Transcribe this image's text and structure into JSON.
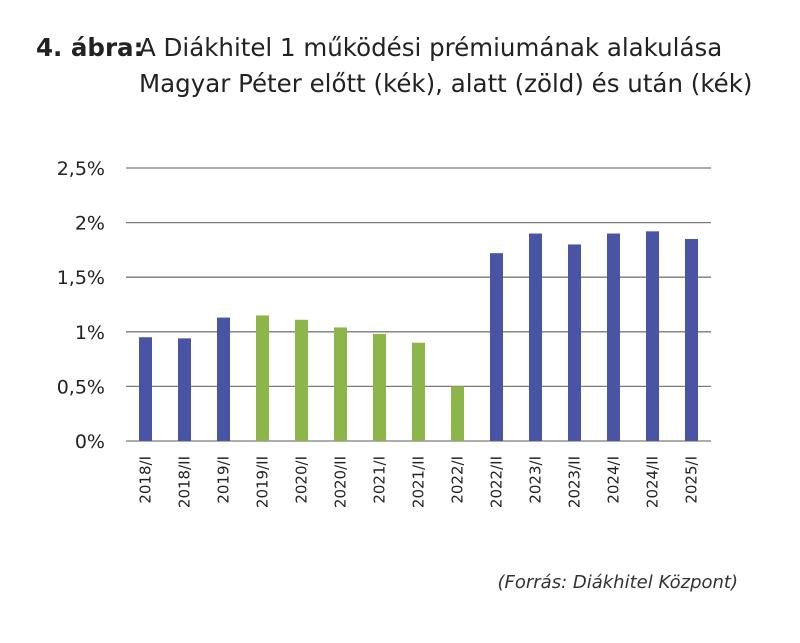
{
  "title": {
    "prefix": "4. ábra:",
    "line1": "A Diákhitel 1 működési prémiumának alakulása",
    "line2": "Magyar Péter előtt (kék), alatt (zöld) és után (kék)"
  },
  "source": "(Forrás: Diákhitel Központ)",
  "colors": {
    "blue": "#4a54a4",
    "green": "#8db64a",
    "grid": "#7a7a7a"
  },
  "chart_data": {
    "type": "bar",
    "categories": [
      "2018/I",
      "2018/II",
      "2019/I",
      "2019/II",
      "2020/I",
      "2020/II",
      "2021/I",
      "2021/II",
      "2022/I",
      "2022/II",
      "2023/I",
      "2023/II",
      "2024/I",
      "2024/II",
      "2025/I"
    ],
    "values": [
      0.95,
      0.94,
      1.13,
      1.15,
      1.11,
      1.04,
      0.98,
      0.9,
      0.5,
      1.72,
      1.9,
      1.8,
      1.9,
      1.92,
      1.85
    ],
    "bar_colors": [
      "blue",
      "blue",
      "blue",
      "green",
      "green",
      "green",
      "green",
      "green",
      "green",
      "blue",
      "blue",
      "blue",
      "blue",
      "blue",
      "blue"
    ],
    "yticks": [
      0,
      0.5,
      1,
      1.5,
      2,
      2.5
    ],
    "ytick_labels": [
      "0%",
      "0,5%",
      "1%",
      "1,5%",
      "2%",
      "2,5%"
    ],
    "ylim": [
      0,
      2.5
    ],
    "grid": true,
    "legend": "none"
  }
}
